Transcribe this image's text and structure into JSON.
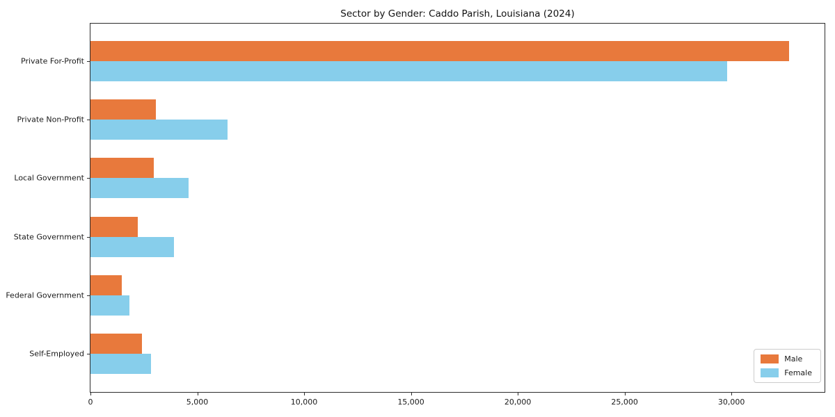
{
  "chart_data": {
    "type": "bar",
    "orientation": "horizontal",
    "title": "Sector by Gender: Caddo Parish, Louisiana (2024)",
    "categories": [
      "Private For-Profit",
      "Private Non-Profit",
      "Local Government",
      "State Government",
      "Federal Government",
      "Self-Employed"
    ],
    "series": [
      {
        "name": "Male",
        "color": "#e8793c",
        "values": [
          32700,
          3050,
          2950,
          2200,
          1450,
          2400
        ]
      },
      {
        "name": "Female",
        "color": "#87ceeb",
        "values": [
          29800,
          6400,
          4600,
          3900,
          1820,
          2820
        ]
      }
    ],
    "xlabel": "",
    "ylabel": "",
    "xlim": [
      0,
      34360
    ],
    "xticks": [
      0,
      5000,
      10000,
      15000,
      20000,
      25000,
      30000
    ],
    "xtick_labels": [
      "0",
      "5,000",
      "10,000",
      "15,000",
      "20,000",
      "25,000",
      "30,000"
    ],
    "legend_position": "lower right",
    "grid": false,
    "background": "#ffffff"
  }
}
